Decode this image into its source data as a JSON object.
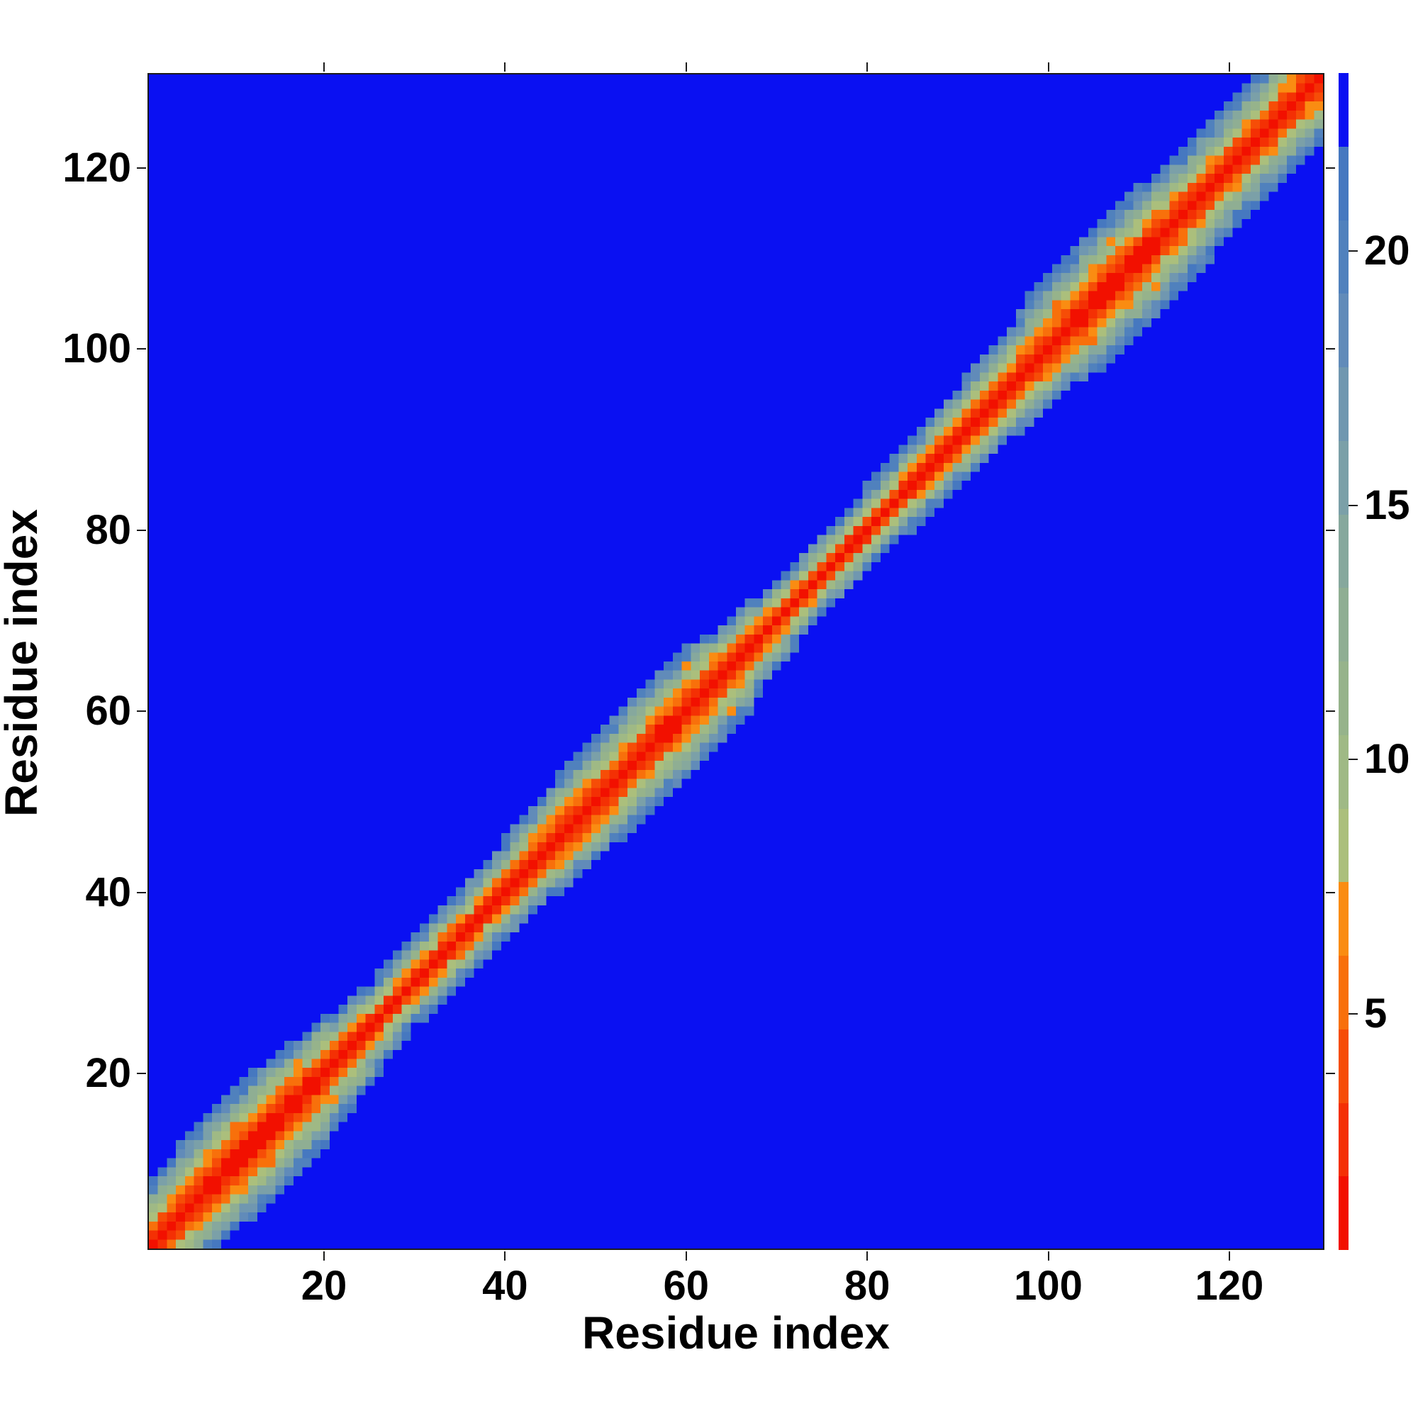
{
  "figure": {
    "background_color": "#ffffff",
    "frame_color": "#1b1b1b"
  },
  "chart_data": {
    "type": "heatmap",
    "title": "",
    "xlabel": "Residue index",
    "ylabel": "Residue index",
    "n_residues": 130,
    "x_ticks": [
      20,
      40,
      60,
      80,
      100,
      120
    ],
    "y_ticks": [
      20,
      40,
      60,
      80,
      100,
      120
    ],
    "axis_range": [
      1,
      130
    ],
    "grid": false,
    "legend_position": "none",
    "colorbar": {
      "position": "right",
      "ticks": [
        5,
        10,
        15,
        20
      ],
      "vmin": 0.36,
      "vmax": 23.5,
      "n_segments": 16,
      "palette_low_to_high": [
        "#f21000",
        "#f43004",
        "#f64d07",
        "#f8700b",
        "#fa8c12",
        "#abbf7c",
        "#9fb985",
        "#96b38b",
        "#8fae93",
        "#86a89d",
        "#7ba0a8",
        "#7097b0",
        "#618bb9",
        "#5081bd",
        "#4678c0",
        "#0a10f2"
      ]
    },
    "background_value_color": "#0a10f2",
    "diagonal_color": "#f21000",
    "band_halfwidth_per_residue": [
      7,
      7,
      7,
      8.5,
      8.5,
      8.5,
      8.5,
      8.5,
      8.5,
      8.5,
      9,
      9,
      9,
      9,
      9,
      9,
      8,
      8,
      8,
      8,
      6,
      6,
      6,
      6,
      5,
      5,
      5,
      5,
      5,
      5,
      5.2,
      5.2,
      5.2,
      5.2,
      5.2,
      5.2,
      5.2,
      5.2,
      5.2,
      5.2,
      6.5,
      6.5,
      6.5,
      6.5,
      6.5,
      7.5,
      7.5,
      7.5,
      7.5,
      7.5,
      7.5,
      7.5,
      7.5,
      7.5,
      7.5,
      8,
      8,
      8,
      8,
      8,
      8,
      8,
      7,
      7,
      7,
      7,
      7,
      4.8,
      4.8,
      4.8,
      4.8,
      4.8,
      4.8,
      4.8,
      4.8,
      4.6,
      4.6,
      4.6,
      4.6,
      4.6,
      4.6,
      4.6,
      4.6,
      4.6,
      5.5,
      5.5,
      5.5,
      5.5,
      5.5,
      5.5,
      6.5,
      6.5,
      6.5,
      6.5,
      6.5,
      6.5,
      6.5,
      7.5,
      7.5,
      7.5,
      7.5,
      7.5,
      7.5,
      9,
      9,
      9,
      9,
      9,
      9,
      9,
      9,
      9,
      7.5,
      7.5,
      7.5,
      7.5,
      7.5,
      7.5,
      7,
      7,
      7,
      7,
      7,
      7,
      7.5,
      7.5,
      7.5,
      7.5,
      7.5,
      7.5
    ],
    "value_model": {
      "exponent": 1.28,
      "jitter": 0.32,
      "jitter_base": 0.84,
      "in_band_cap": 21.9,
      "diagonal_value": 0.5,
      "speck_threshold": 0.982,
      "speck_min_halfwidth": 6.4,
      "speck_value_base": 4.7,
      "speck_value_spread": 2.5
    },
    "description": "Symmetric residue-residue distance map: red along the diagonal (short distances), orange/green band flanking it, saturated blue background beyond ~22"
  }
}
